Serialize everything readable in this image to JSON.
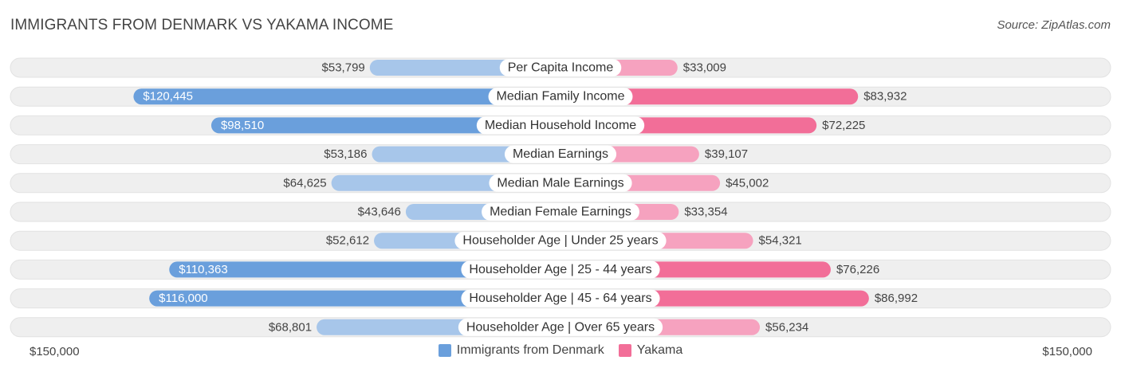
{
  "header": {
    "title": "IMMIGRANTS FROM DENMARK VS YAKAMA INCOME",
    "source": "Source: ZipAtlas.com"
  },
  "colors": {
    "left_strong": "#6a9fdc",
    "left_light": "#a7c6ea",
    "right_strong": "#f26e98",
    "right_light": "#f6a2bf",
    "row_bg": "#efefef"
  },
  "chart_data": {
    "type": "bar",
    "orientation": "diverging-horizontal",
    "max": 150000,
    "axis_left_label": "$150,000",
    "axis_right_label": "$150,000",
    "categories": [
      "Per Capita Income",
      "Median Family Income",
      "Median Household Income",
      "Median Earnings",
      "Median Male Earnings",
      "Median Female Earnings",
      "Householder Age | Under 25 years",
      "Householder Age | 25 - 44 years",
      "Householder Age | 45 - 64 years",
      "Householder Age | Over 65 years"
    ],
    "series": [
      {
        "name": "Immigrants from Denmark",
        "side": "left",
        "values": [
          53799,
          120445,
          98510,
          53186,
          64625,
          43646,
          52612,
          110363,
          116000,
          68801
        ],
        "labels": [
          "$53,799",
          "$120,445",
          "$98,510",
          "$53,186",
          "$64,625",
          "$43,646",
          "$52,612",
          "$110,363",
          "$116,000",
          "$68,801"
        ]
      },
      {
        "name": "Yakama",
        "side": "right",
        "values": [
          33009,
          83932,
          72225,
          39107,
          45002,
          33354,
          54321,
          76226,
          86992,
          56234
        ],
        "labels": [
          "$33,009",
          "$83,932",
          "$72,225",
          "$39,107",
          "$45,002",
          "$33,354",
          "$54,321",
          "$76,226",
          "$86,992",
          "$56,234"
        ]
      }
    ]
  },
  "legend": {
    "left_name": "Immigrants from Denmark",
    "right_name": "Yakama"
  }
}
